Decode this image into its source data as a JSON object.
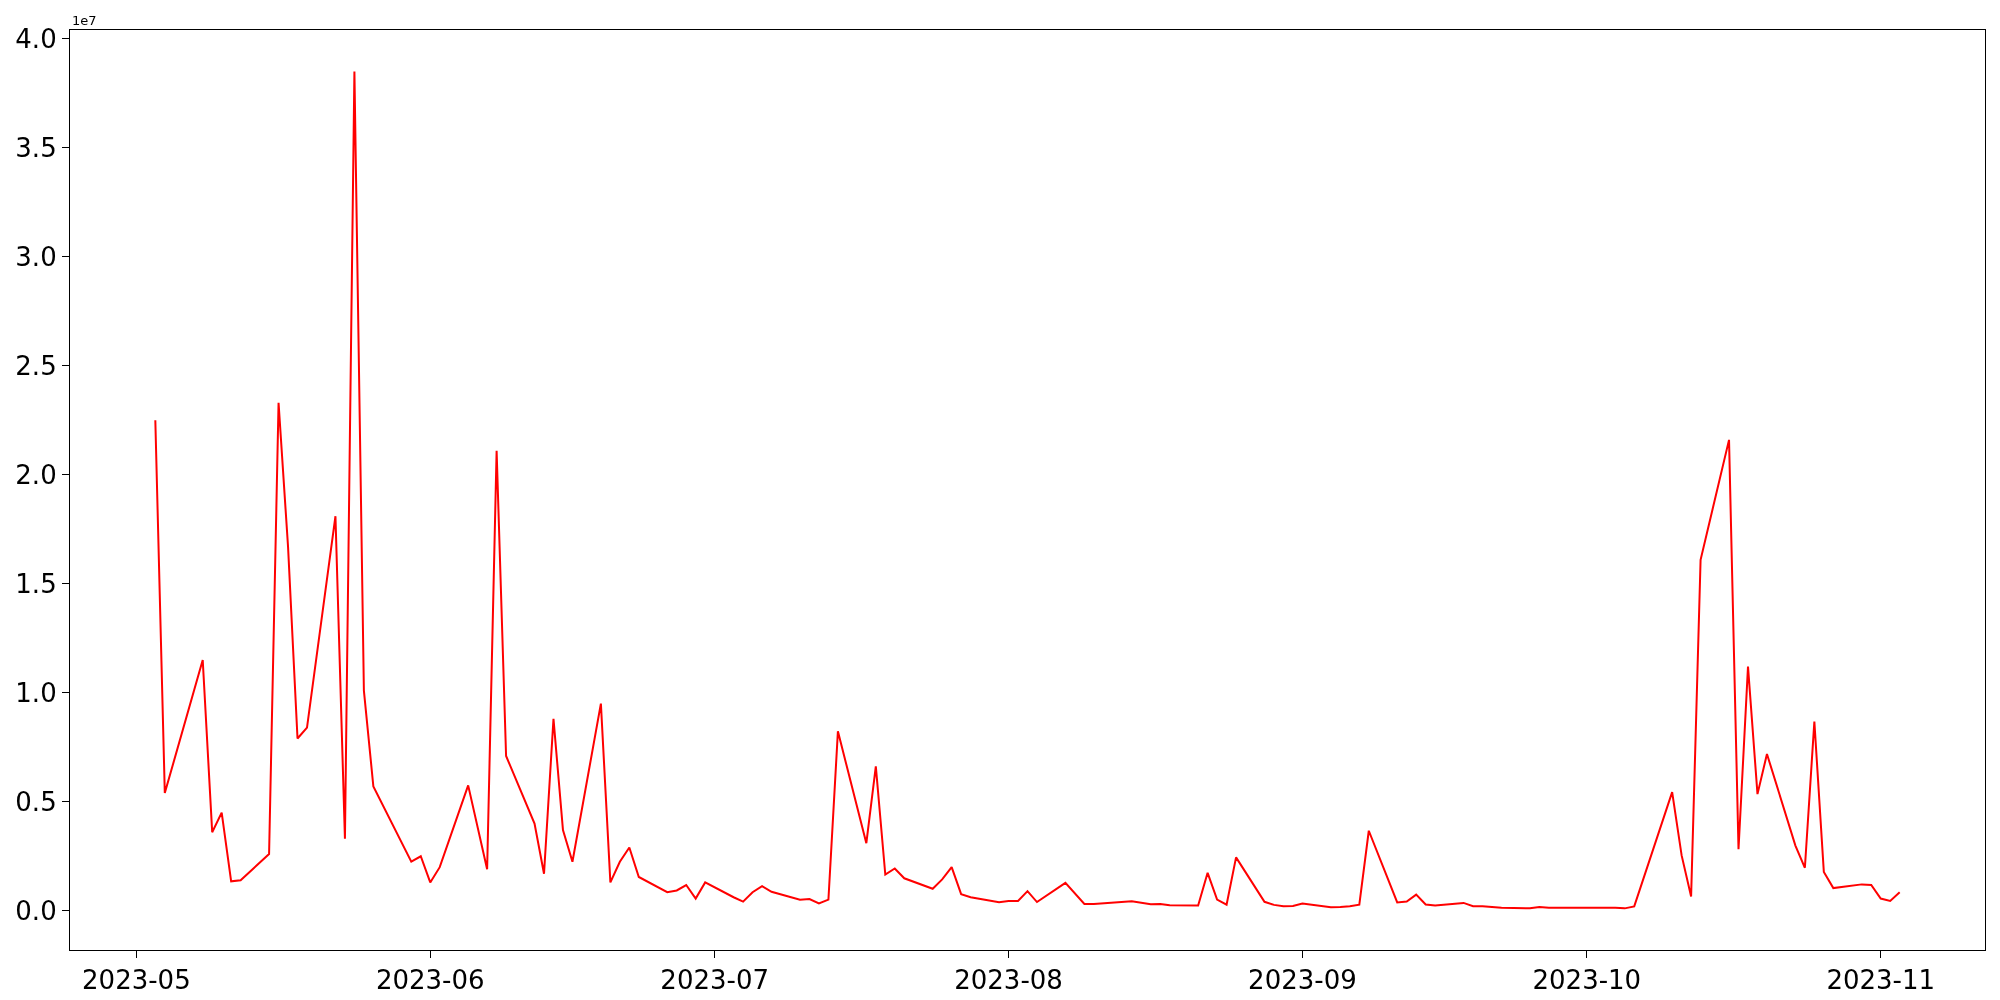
{
  "chart_data": {
    "type": "line",
    "annotations": [
      "1e7"
    ],
    "x": [
      "2023-05-03",
      "2023-05-04",
      "2023-05-08",
      "2023-05-09",
      "2023-05-10",
      "2023-05-11",
      "2023-05-12",
      "2023-05-15",
      "2023-05-16",
      "2023-05-17",
      "2023-05-18",
      "2023-05-19",
      "2023-05-22",
      "2023-05-23",
      "2023-05-24",
      "2023-05-25",
      "2023-05-26",
      "2023-05-30",
      "2023-05-31",
      "2023-06-01",
      "2023-06-02",
      "2023-06-05",
      "2023-06-07",
      "2023-06-08",
      "2023-06-09",
      "2023-06-12",
      "2023-06-13",
      "2023-06-14",
      "2023-06-15",
      "2023-06-16",
      "2023-06-19",
      "2023-06-20",
      "2023-06-21",
      "2023-06-22",
      "2023-06-23",
      "2023-06-26",
      "2023-06-27",
      "2023-06-28",
      "2023-06-29",
      "2023-06-30",
      "2023-07-03",
      "2023-07-04",
      "2023-07-05",
      "2023-07-06",
      "2023-07-07",
      "2023-07-10",
      "2023-07-11",
      "2023-07-12",
      "2023-07-13",
      "2023-07-14",
      "2023-07-17",
      "2023-07-18",
      "2023-07-19",
      "2023-07-20",
      "2023-07-21",
      "2023-07-24",
      "2023-07-25",
      "2023-07-26",
      "2023-07-27",
      "2023-07-28",
      "2023-07-31",
      "2023-08-01",
      "2023-08-02",
      "2023-08-03",
      "2023-08-04",
      "2023-08-07",
      "2023-08-09",
      "2023-08-10",
      "2023-08-14",
      "2023-08-16",
      "2023-08-17",
      "2023-08-18",
      "2023-08-21",
      "2023-08-22",
      "2023-08-23",
      "2023-08-24",
      "2023-08-25",
      "2023-08-28",
      "2023-08-29",
      "2023-08-30",
      "2023-08-31",
      "2023-09-01",
      "2023-09-04",
      "2023-09-05",
      "2023-09-06",
      "2023-09-07",
      "2023-09-08",
      "2023-09-11",
      "2023-09-12",
      "2023-09-13",
      "2023-09-14",
      "2023-09-15",
      "2023-09-18",
      "2023-09-19",
      "2023-09-20",
      "2023-09-21",
      "2023-09-22",
      "2023-09-25",
      "2023-09-26",
      "2023-09-27",
      "2023-09-28",
      "2023-09-29",
      "2023-10-02",
      "2023-10-03",
      "2023-10-04",
      "2023-10-05",
      "2023-10-06",
      "2023-10-10",
      "2023-10-11",
      "2023-10-12",
      "2023-10-13",
      "2023-10-16",
      "2023-10-17",
      "2023-10-18",
      "2023-10-19",
      "2023-10-20",
      "2023-10-23",
      "2023-10-24",
      "2023-10-25",
      "2023-10-26",
      "2023-10-27",
      "2023-10-30",
      "2023-10-31",
      "2023-11-01",
      "2023-11-02",
      "2023-11-03"
    ],
    "series": [
      {
        "color": "#ff0000",
        "values": [
          2.25,
          0.54,
          1.15,
          0.36,
          0.45,
          0.135,
          0.14,
          0.26,
          2.33,
          1.67,
          0.79,
          0.84,
          1.81,
          0.33,
          3.85,
          1.01,
          0.57,
          0.225,
          0.25,
          0.13,
          0.2,
          0.575,
          0.19,
          2.11,
          0.71,
          0.4,
          0.17,
          0.88,
          0.37,
          0.225,
          0.95,
          0.13,
          0.225,
          0.29,
          0.155,
          0.085,
          0.093,
          0.118,
          0.056,
          0.13,
          0.062,
          0.042,
          0.085,
          0.113,
          0.087,
          0.051,
          0.054,
          0.034,
          0.051,
          0.823,
          0.31,
          0.662,
          0.166,
          0.194,
          0.149,
          0.101,
          0.144,
          0.2,
          0.076,
          0.062,
          0.039,
          0.045,
          0.045,
          0.09,
          0.04,
          0.128,
          0.031,
          0.031,
          0.044,
          0.03,
          0.031,
          0.025,
          0.024,
          0.174,
          0.051,
          0.028,
          0.245,
          0.041,
          0.027,
          0.021,
          0.022,
          0.033,
          0.016,
          0.017,
          0.021,
          0.028,
          0.367,
          0.038,
          0.042,
          0.074,
          0.029,
          0.024,
          0.036,
          0.021,
          0.021,
          0.017,
          0.014,
          0.011,
          0.017,
          0.014,
          0.014,
          0.014,
          0.014,
          0.014,
          0.014,
          0.011,
          0.02,
          0.544,
          0.254,
          0.065,
          1.61,
          2.16,
          0.282,
          1.12,
          0.535,
          0.719,
          0.299,
          0.197,
          0.868,
          0.178,
          0.104,
          0.121,
          0.118,
          0.056,
          0.045,
          0.085
        ]
      }
    ],
    "xlim": [
      "2023-04-24",
      "2023-11-12"
    ],
    "xticks": [
      {
        "value": "2023-05-01",
        "label": "2023-05"
      },
      {
        "value": "2023-06-01",
        "label": "2023-06"
      },
      {
        "value": "2023-07-01",
        "label": "2023-07"
      },
      {
        "value": "2023-08-01",
        "label": "2023-08"
      },
      {
        "value": "2023-09-01",
        "label": "2023-09"
      },
      {
        "value": "2023-10-01",
        "label": "2023-10"
      },
      {
        "value": "2023-11-01",
        "label": "2023-11"
      }
    ],
    "ylim": [
      -0.18,
      4.04
    ],
    "yticks": [
      {
        "value": 0,
        "label": "0.0"
      },
      {
        "value": 0.5,
        "label": "0.5"
      },
      {
        "value": 1,
        "label": "1.0"
      },
      {
        "value": 1.5,
        "label": "1.5"
      },
      {
        "value": 2,
        "label": "2.0"
      },
      {
        "value": 2.5,
        "label": "2.5"
      },
      {
        "value": 3,
        "label": "3.0"
      },
      {
        "value": 3.5,
        "label": "3.5"
      },
      {
        "value": 4,
        "label": "4.0"
      }
    ]
  }
}
